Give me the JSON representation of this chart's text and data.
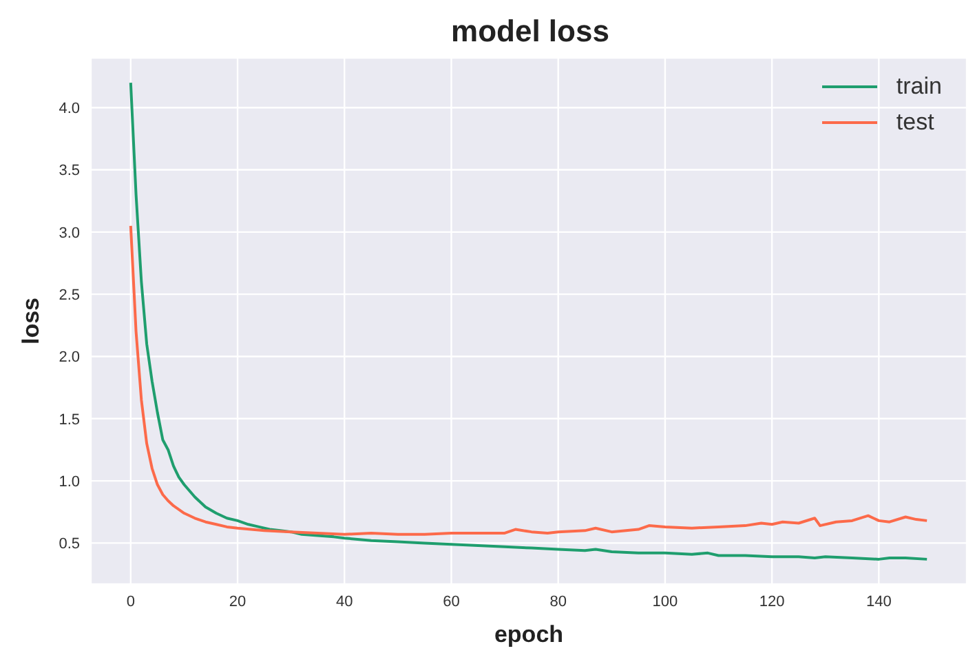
{
  "chart_data": {
    "type": "line",
    "title": "model loss",
    "xlabel": "epoch",
    "ylabel": "loss",
    "xlim": [
      -7.45,
      156.45
    ],
    "ylim": [
      0.17,
      4.4
    ],
    "xticks": [
      0,
      20,
      40,
      60,
      80,
      100,
      120,
      140
    ],
    "yticks": [
      {
        "value": 0.5,
        "label": "0.5"
      },
      {
        "value": 1,
        "label": "1.0"
      },
      {
        "value": 1.5,
        "label": "1.5"
      },
      {
        "value": 2,
        "label": "2.0"
      },
      {
        "value": 2.5,
        "label": "2.5"
      },
      {
        "value": 3,
        "label": "3.0"
      },
      {
        "value": 3.5,
        "label": "3.5"
      },
      {
        "value": 4,
        "label": "4.0"
      }
    ],
    "grid": true,
    "legend": "top right",
    "marker": "none",
    "line_style": "solid",
    "series": [
      {
        "name": "train",
        "color": "#1f9e6e",
        "x": [
          0,
          1,
          2,
          3,
          4,
          5,
          6,
          7,
          8,
          9,
          10,
          12,
          14,
          16,
          18,
          20,
          22,
          24,
          26,
          28,
          30,
          32,
          35,
          38,
          40,
          45,
          50,
          55,
          60,
          65,
          70,
          75,
          80,
          85,
          87,
          90,
          95,
          100,
          105,
          108,
          110,
          115,
          120,
          125,
          128,
          130,
          135,
          140,
          142,
          145,
          149
        ],
        "values": [
          4.2,
          3.3,
          2.6,
          2.1,
          1.8,
          1.55,
          1.33,
          1.25,
          1.12,
          1.03,
          0.97,
          0.87,
          0.79,
          0.74,
          0.7,
          0.68,
          0.65,
          0.63,
          0.61,
          0.6,
          0.59,
          0.57,
          0.56,
          0.55,
          0.54,
          0.52,
          0.51,
          0.5,
          0.49,
          0.48,
          0.47,
          0.46,
          0.45,
          0.44,
          0.45,
          0.43,
          0.42,
          0.42,
          0.41,
          0.42,
          0.4,
          0.4,
          0.39,
          0.39,
          0.38,
          0.39,
          0.38,
          0.37,
          0.38,
          0.38,
          0.37
        ]
      },
      {
        "name": "test",
        "color": "#fc6a4a",
        "x": [
          0,
          1,
          2,
          3,
          4,
          5,
          6,
          7,
          8,
          10,
          12,
          14,
          16,
          18,
          20,
          25,
          30,
          35,
          40,
          45,
          50,
          55,
          60,
          65,
          70,
          72,
          75,
          78,
          80,
          85,
          87,
          90,
          95,
          97,
          100,
          105,
          110,
          115,
          118,
          120,
          122,
          125,
          128,
          129,
          132,
          135,
          138,
          140,
          142,
          145,
          147,
          149
        ],
        "values": [
          3.05,
          2.2,
          1.65,
          1.3,
          1.1,
          0.97,
          0.89,
          0.84,
          0.8,
          0.74,
          0.7,
          0.67,
          0.65,
          0.63,
          0.62,
          0.6,
          0.59,
          0.58,
          0.57,
          0.58,
          0.57,
          0.57,
          0.58,
          0.58,
          0.58,
          0.61,
          0.59,
          0.58,
          0.59,
          0.6,
          0.62,
          0.59,
          0.61,
          0.64,
          0.63,
          0.62,
          0.63,
          0.64,
          0.66,
          0.65,
          0.67,
          0.66,
          0.7,
          0.64,
          0.67,
          0.68,
          0.72,
          0.68,
          0.67,
          0.71,
          0.69,
          0.68
        ]
      }
    ]
  }
}
